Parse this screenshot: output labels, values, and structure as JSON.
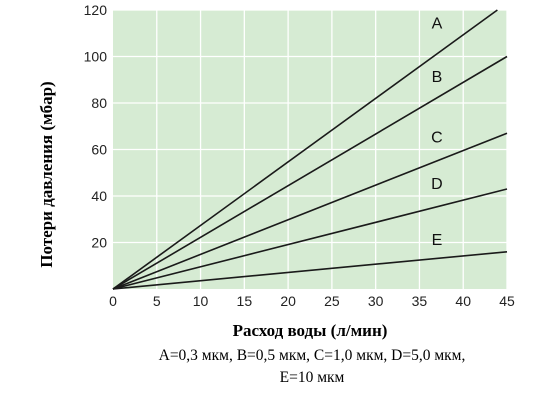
{
  "chart_data": {
    "type": "line",
    "title": "",
    "xlabel": "Расход воды (л/мин)",
    "ylabel": "Потери давления (мбар)",
    "xlim": [
      0,
      45
    ],
    "ylim": [
      0,
      120
    ],
    "x_ticks": [
      0,
      5,
      10,
      15,
      20,
      25,
      30,
      35,
      40,
      45
    ],
    "y_ticks": [
      20,
      40,
      60,
      80,
      100,
      120
    ],
    "grid": true,
    "background_color": "#d6ebd3",
    "grid_color": "#ffffff",
    "line_color": "#1a1a1a",
    "series": [
      {
        "name": "A",
        "x": [
          0,
          45
        ],
        "y": [
          0,
          123
        ]
      },
      {
        "name": "B",
        "x": [
          0,
          45
        ],
        "y": [
          0,
          100
        ]
      },
      {
        "name": "C",
        "x": [
          0,
          45
        ],
        "y": [
          0,
          67
        ]
      },
      {
        "name": "D",
        "x": [
          0,
          45
        ],
        "y": [
          0,
          43
        ]
      },
      {
        "name": "E",
        "x": [
          0,
          45
        ],
        "y": [
          0,
          16
        ]
      }
    ],
    "series_label_positions": [
      {
        "name": "A",
        "x": 37,
        "y": 112
      },
      {
        "name": "B",
        "x": 37,
        "y": 89
      },
      {
        "name": "C",
        "x": 37,
        "y": 63
      },
      {
        "name": "D",
        "x": 37,
        "y": 43
      },
      {
        "name": "E",
        "x": 37,
        "y": 19
      }
    ],
    "caption_lines": [
      "A=0,3 мкм, B=0,5 мкм, C=1,0 мкм, D=5,0 мкм,",
      "E=10 мкм"
    ]
  }
}
